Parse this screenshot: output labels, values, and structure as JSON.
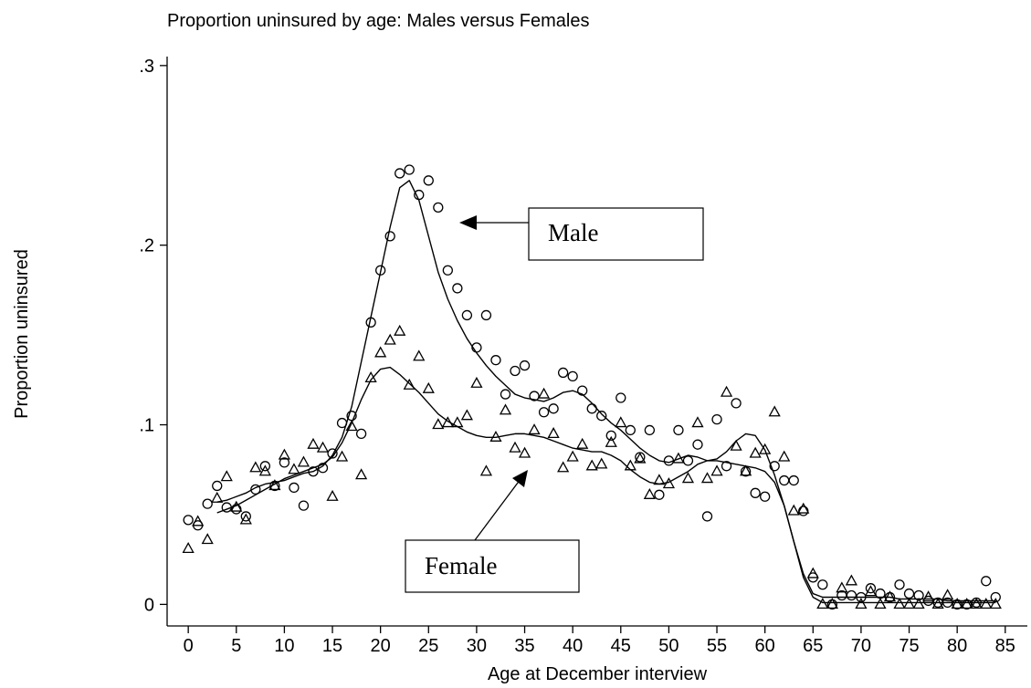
{
  "chart_data": {
    "type": "scatter",
    "title": "Proportion uninsured by age: Males versus Females",
    "xlabel": "Age at December interview",
    "ylabel": "Proportion uninsured",
    "x": [
      0,
      1,
      2,
      3,
      4,
      5,
      6,
      7,
      8,
      9,
      10,
      11,
      12,
      13,
      14,
      15,
      16,
      17,
      18,
      19,
      20,
      21,
      22,
      23,
      24,
      25,
      26,
      27,
      28,
      29,
      30,
      31,
      32,
      33,
      34,
      35,
      36,
      37,
      38,
      39,
      40,
      41,
      42,
      43,
      44,
      45,
      46,
      47,
      48,
      49,
      50,
      51,
      52,
      53,
      54,
      55,
      56,
      57,
      58,
      59,
      60,
      61,
      62,
      63,
      64,
      65,
      66,
      67,
      68,
      69,
      70,
      71,
      72,
      73,
      74,
      75,
      76,
      77,
      78,
      79,
      80,
      81,
      82,
      83,
      84
    ],
    "xlim": [
      -2.2,
      87.3
    ],
    "ylim": [
      -0.012,
      0.305
    ],
    "xticks": [
      0,
      5,
      10,
      15,
      20,
      25,
      30,
      35,
      40,
      45,
      50,
      55,
      60,
      65,
      70,
      75,
      80,
      85
    ],
    "yticks": [
      0,
      {
        "value": 0.1,
        "label": ".1"
      },
      {
        "value": 0.2,
        "label": ".2"
      },
      {
        "value": 0.3,
        "label": ".3"
      }
    ],
    "series": [
      {
        "name": "Male",
        "marker": "circle",
        "color": "#000000",
        "values": [
          0.047,
          0.044,
          0.056,
          0.066,
          0.054,
          0.053,
          0.049,
          0.064,
          0.077,
          0.066,
          0.079,
          0.065,
          0.055,
          0.074,
          0.076,
          0.084,
          0.101,
          0.105,
          0.095,
          0.157,
          0.186,
          0.205,
          0.24,
          0.242,
          0.228,
          0.236,
          0.221,
          0.186,
          0.176,
          0.161,
          0.143,
          0.161,
          0.136,
          0.117,
          0.13,
          0.133,
          0.116,
          0.107,
          0.109,
          0.129,
          0.127,
          0.119,
          0.109,
          0.105,
          0.094,
          0.115,
          0.097,
          0.082,
          0.097,
          0.061,
          0.08,
          0.097,
          0.08,
          0.089,
          0.049,
          0.103,
          0.077,
          0.112,
          0.074,
          0.062,
          0.06,
          0.077,
          0.069,
          0.069,
          0.052,
          0.015,
          0.011,
          0,
          0.005,
          0.005,
          0.004,
          0.009,
          0.006,
          0.004,
          0.011,
          0.006,
          0.005,
          0.002,
          0.001,
          0.001,
          0,
          0,
          0.001,
          0.013,
          0.004
        ],
        "smooth": [
          null,
          null,
          null,
          0.057,
          0.058,
          0.06,
          0.062,
          0.065,
          0.067,
          0.068,
          0.069,
          0.071,
          0.073,
          0.074,
          0.077,
          0.083,
          0.093,
          0.11,
          0.135,
          0.16,
          0.185,
          0.21,
          0.232,
          0.236,
          0.225,
          0.205,
          0.185,
          0.17,
          0.158,
          0.148,
          0.14,
          0.133,
          0.127,
          0.122,
          0.117,
          0.115,
          0.114,
          0.113,
          0.115,
          0.118,
          0.119,
          0.117,
          0.112,
          0.106,
          0.101,
          0.097,
          0.092,
          0.087,
          0.083,
          0.08,
          0.079,
          0.081,
          0.083,
          0.082,
          0.08,
          0.081,
          0.085,
          0.091,
          0.095,
          0.094,
          0.086,
          0.072,
          0.055,
          0.035,
          0.017,
          0.006,
          0.004,
          0.004,
          0.004,
          0.004,
          0.004,
          0.004,
          0.004,
          0.004,
          0.003,
          0.003,
          0.003,
          0.003,
          0.003,
          0.002,
          0.002,
          0.002,
          0.002,
          0.002,
          0.002
        ]
      },
      {
        "name": "Female",
        "marker": "triangle",
        "color": "#000000",
        "values": [
          0.031,
          0.046,
          0.036,
          0.059,
          0.071,
          0.054,
          0.047,
          0.076,
          0.074,
          0.066,
          0.083,
          0.075,
          0.079,
          0.089,
          0.087,
          0.06,
          0.082,
          0.099,
          0.072,
          0.126,
          0.14,
          0.147,
          0.152,
          0.122,
          0.138,
          0.12,
          0.1,
          0.101,
          0.101,
          0.105,
          0.123,
          0.074,
          0.093,
          0.108,
          0.087,
          0.084,
          0.097,
          0.117,
          0.095,
          0.076,
          0.082,
          0.089,
          0.077,
          0.078,
          0.09,
          0.101,
          0.077,
          0.081,
          0.061,
          0.069,
          0.067,
          0.081,
          0.07,
          0.101,
          0.07,
          0.074,
          0.118,
          0.088,
          0.074,
          0.084,
          0.086,
          0.107,
          0.082,
          0.052,
          0.053,
          0.017,
          0,
          0,
          0.009,
          0.013,
          0,
          0.007,
          0,
          0.004,
          0,
          0,
          0,
          0.004,
          0,
          0.005,
          0,
          0,
          0,
          0,
          0
        ],
        "smooth": [
          null,
          null,
          null,
          0.051,
          0.053,
          0.055,
          0.058,
          0.061,
          0.064,
          0.067,
          0.07,
          0.072,
          0.074,
          0.076,
          0.078,
          0.082,
          0.09,
          0.101,
          0.114,
          0.125,
          0.131,
          0.132,
          0.128,
          0.123,
          0.118,
          0.112,
          0.106,
          0.102,
          0.099,
          0.096,
          0.094,
          0.093,
          0.093,
          0.094,
          0.095,
          0.095,
          0.094,
          0.093,
          0.091,
          0.089,
          0.087,
          0.086,
          0.085,
          0.085,
          0.083,
          0.08,
          0.075,
          0.071,
          0.068,
          0.067,
          0.068,
          0.071,
          0.074,
          0.078,
          0.08,
          0.08,
          0.079,
          0.078,
          0.077,
          0.076,
          0.074,
          0.068,
          0.055,
          0.035,
          0.015,
          0.004,
          0.001,
          0.001,
          0.001,
          0.001,
          0.001,
          0.001,
          0.001,
          0.001,
          0.001,
          0.001,
          0.001,
          0.001,
          0.001,
          0.001,
          0.001,
          0.001,
          0.001,
          0.001,
          0.001
        ]
      }
    ]
  }
}
